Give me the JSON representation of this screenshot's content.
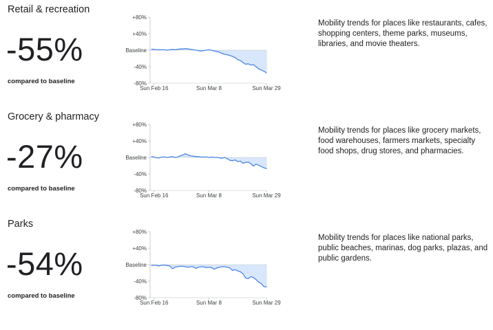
{
  "sections": [
    {
      "title": "Retail & recreation",
      "value": "-55%",
      "caption": "compared to baseline",
      "description": "Mobility trends for places like restaurants, cafes, shopping centers, theme parks, museums, libraries, and movie theaters."
    },
    {
      "title": "Grocery & pharmacy",
      "value": "-27%",
      "caption": "compared to baseline",
      "description": "Mobility trends for places like grocery markets, food warehouses, farmers markets, specialty food shops, drug stores, and pharmacies."
    },
    {
      "title": "Parks",
      "value": "-54%",
      "caption": "compared to baseline",
      "description": "Mobility trends for places like national parks, public beaches, marinas, dog parks, plazas, and public gardens."
    }
  ],
  "colors": {
    "line": "#4a86e8",
    "fill": "#d2e3fc",
    "axis": "#bdc1c6",
    "text": "#202124"
  },
  "chart_data": [
    {
      "type": "area",
      "title": "Retail & recreation",
      "y_tick_labels": [
        "+80%",
        "+40%",
        "Baseline",
        "-40%",
        "-80%"
      ],
      "ylim": [
        -80,
        80
      ],
      "x_tick_labels": [
        "Sun Feb 16",
        "Sun Mar 8",
        "Sun Mar 29"
      ],
      "x_start": "2020-02-15",
      "x_end": "2020-03-29",
      "values": [
        2,
        2,
        1,
        1,
        1,
        1,
        0,
        1,
        2,
        1,
        2,
        3,
        3,
        4,
        3,
        2,
        1,
        0,
        -1,
        -2,
        -1,
        0,
        1,
        0,
        -2,
        -3,
        -5,
        -8,
        -10,
        -11,
        -13,
        -15,
        -18,
        -23,
        -25,
        -30,
        -34,
        -33,
        -36,
        -35,
        -40,
        -45,
        -48,
        -51,
        -55
      ]
    },
    {
      "type": "area",
      "title": "Grocery & pharmacy",
      "y_tick_labels": [
        "+80%",
        "+40%",
        "Baseline",
        "-40%",
        "-80%"
      ],
      "ylim": [
        -80,
        80
      ],
      "x_tick_labels": [
        "Sun Feb 16",
        "Sun Mar 8",
        "Sun Mar 29"
      ],
      "x_start": "2020-02-15",
      "x_end": "2020-03-29",
      "values": [
        2,
        1,
        -1,
        -1,
        1,
        1,
        0,
        1,
        2,
        0,
        1,
        4,
        6,
        9,
        6,
        4,
        3,
        2,
        2,
        1,
        1,
        1,
        0,
        1,
        0,
        0,
        -1,
        -2,
        0,
        -3,
        -7,
        -8,
        -6,
        -10,
        -9,
        -14,
        -12,
        -11,
        -15,
        -21,
        -16,
        -19,
        -22,
        -25,
        -27
      ]
    },
    {
      "type": "area",
      "title": "Parks",
      "y_tick_labels": [
        "+80%",
        "+40%",
        "Baseline",
        "-40%",
        "-80%"
      ],
      "ylim": [
        -80,
        80
      ],
      "x_tick_labels": [
        "Sun Feb 16",
        "Sun Mar 8",
        "Sun Mar 29"
      ],
      "x_start": "2020-02-15",
      "x_end": "2020-03-29",
      "values": [
        -2,
        -1,
        -2,
        -3,
        -1,
        -1,
        -2,
        -3,
        -10,
        -6,
        -5,
        -4,
        -4,
        -5,
        -6,
        -5,
        -5,
        -9,
        -6,
        -5,
        -5,
        -7,
        -6,
        -7,
        -11,
        -8,
        -6,
        -5,
        -5,
        -6,
        -8,
        -14,
        -12,
        -15,
        -17,
        -22,
        -32,
        -34,
        -29,
        -31,
        -36,
        -42,
        -46,
        -53,
        -54
      ]
    }
  ]
}
